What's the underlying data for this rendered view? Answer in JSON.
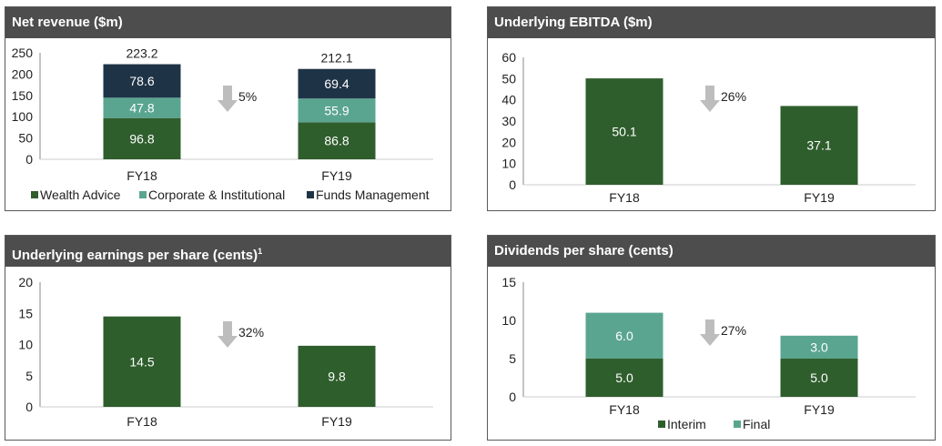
{
  "colors": {
    "wealth": "#2f5e2d",
    "corporate": "#5aa590",
    "funds": "#1f3346",
    "header_bg": "#4d4d4d",
    "arrow": "#bdbdbd"
  },
  "panels": {
    "net_revenue": {
      "title": "Net revenue ($m)"
    },
    "ebitda": {
      "title": "Underlying EBITDA ($m)"
    },
    "eps": {
      "title": "Underlying earnings per share (cents)",
      "footnote": "1"
    },
    "dps": {
      "title": "Dividends per share (cents)"
    }
  },
  "chart_data": [
    {
      "id": "net_revenue",
      "type": "bar",
      "stacked": true,
      "categories": [
        "FY18",
        "FY19"
      ],
      "series": [
        {
          "name": "Wealth Advice",
          "values": [
            96.8,
            86.8
          ],
          "color": "#2f5e2d"
        },
        {
          "name": "Corporate & Institutional",
          "values": [
            47.8,
            55.9
          ],
          "color": "#5aa590"
        },
        {
          "name": "Funds Management",
          "values": [
            78.6,
            69.4
          ],
          "color": "#1f3346"
        }
      ],
      "totals": [
        "223.2",
        "212.1"
      ],
      "value_labels": [
        [
          "96.8",
          "86.8"
        ],
        [
          "47.8",
          "55.9"
        ],
        [
          "78.6",
          "69.4"
        ]
      ],
      "ylim": [
        0,
        250
      ],
      "yticks": [
        "0",
        "50",
        "100",
        "150",
        "200",
        "250"
      ],
      "change_label": "5%",
      "legend": "bottom"
    },
    {
      "id": "ebitda",
      "type": "bar",
      "stacked": false,
      "categories": [
        "FY18",
        "FY19"
      ],
      "series": [
        {
          "values": [
            50.1,
            37.1
          ],
          "color": "#2f5e2d"
        }
      ],
      "value_labels": [
        [
          "50.1",
          "37.1"
        ]
      ],
      "ylim": [
        0,
        60
      ],
      "yticks": [
        "0",
        "10",
        "20",
        "30",
        "40",
        "50",
        "60"
      ],
      "change_label": "26%"
    },
    {
      "id": "eps",
      "type": "bar",
      "stacked": false,
      "categories": [
        "FY18",
        "FY19"
      ],
      "series": [
        {
          "values": [
            14.5,
            9.8
          ],
          "color": "#2f5e2d"
        }
      ],
      "value_labels": [
        [
          "14.5",
          "9.8"
        ]
      ],
      "ylim": [
        0,
        20
      ],
      "yticks": [
        "0",
        "5",
        "10",
        "15",
        "20"
      ],
      "change_label": "32%"
    },
    {
      "id": "dps",
      "type": "bar",
      "stacked": true,
      "categories": [
        "FY18",
        "FY19"
      ],
      "series": [
        {
          "name": "Interim",
          "values": [
            5.0,
            5.0
          ],
          "color": "#2f5e2d"
        },
        {
          "name": "Final",
          "values": [
            6.0,
            3.0
          ],
          "color": "#5aa590"
        }
      ],
      "value_labels": [
        [
          "5.0",
          "5.0"
        ],
        [
          "6.0",
          "3.0"
        ]
      ],
      "ylim": [
        0,
        15
      ],
      "yticks": [
        "0",
        "5",
        "10",
        "15"
      ],
      "change_label": "27%",
      "legend": "bottom"
    }
  ]
}
